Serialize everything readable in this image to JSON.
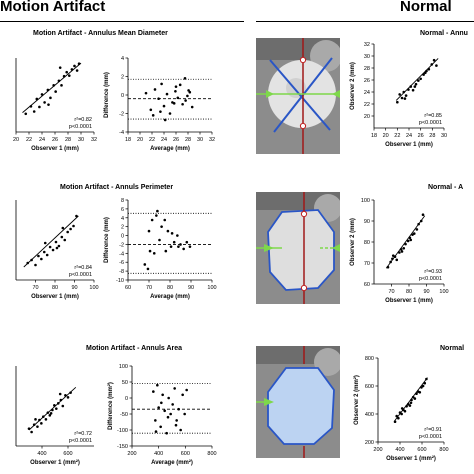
{
  "headers": {
    "left": "Motion Artifact",
    "right": "Normal"
  },
  "colors": {
    "ct_bg": "#8a8a8a",
    "ring": "#2a56c6",
    "fill": "#bcd3f2",
    "vline": "#a01818",
    "arrow": "#7ed84a"
  },
  "rows": [
    {
      "left_title": "Motion Artifact - Annulus Mean Diameter",
      "right_title": "Normal - Annu",
      "ct_icon": "ct-annulus-diameter-image",
      "stats_ma": {
        "r2": "r²=0.82",
        "p": "p<0.0001"
      },
      "stats_n": {
        "r2": "r²=0.85",
        "p": "p<0.0001"
      }
    },
    {
      "left_title": "Motion Artifact - Annuls Perimeter",
      "right_title": "Normal - A",
      "ct_icon": "ct-annulus-perimeter-image",
      "stats_ma": {
        "r2": "r²=0.84",
        "p": "p<0.0001"
      },
      "stats_n": {
        "r2": "r²=0.93",
        "p": "p<0.0001"
      }
    },
    {
      "left_title": "Motion Artifact - Annuls Area",
      "right_title": "Normal",
      "ct_icon": "ct-annulus-area-image",
      "stats_ma": {
        "r2": "r²=0.72",
        "p": "p<0.0001"
      },
      "stats_n": {
        "r2": "r²=0.91",
        "p": "p<0.0001"
      }
    }
  ],
  "chart_data": [
    {
      "id": "ma-diam-scatter",
      "type": "scatter",
      "xlabel": "Observer 1 (mm)",
      "ylabel": "",
      "xlim": [
        20,
        32
      ],
      "ylim": [
        18,
        31
      ],
      "xticks": [
        "20",
        "22",
        "24",
        "26",
        "28",
        "30",
        "32"
      ],
      "yticks": [],
      "x": [
        21.5,
        22.3,
        22.8,
        23.2,
        23.6,
        24.0,
        24.4,
        24.9,
        25.3,
        25.8,
        26.1,
        26.6,
        27.0,
        27.4,
        27.8,
        28.2,
        28.6,
        29.0,
        29.4,
        29.7,
        25.0,
        26.8
      ],
      "y": [
        21.2,
        22.5,
        21.6,
        23.8,
        22.4,
        24.6,
        23.2,
        25.4,
        24.0,
        26.2,
        25.1,
        27.0,
        26.2,
        27.8,
        28.5,
        27.9,
        29.0,
        29.6,
        28.8,
        30.0,
        22.8,
        29.3
      ],
      "fit": [
        [
          21.0,
          21.4
        ],
        [
          30.0,
          30.1
        ]
      ]
    },
    {
      "id": "ma-diam-ba",
      "type": "scatter",
      "xlabel": "Average (mm)",
      "ylabel": "Difference (mm)",
      "xlim": [
        18,
        32
      ],
      "ylim": [
        -4,
        4
      ],
      "xticks": [
        "18",
        "20",
        "22",
        "24",
        "26",
        "28",
        "30",
        "32"
      ],
      "yticks": [
        "-4",
        "-2",
        "0",
        "2",
        "4"
      ],
      "x": [
        21.0,
        21.8,
        22.5,
        23.1,
        23.6,
        24.0,
        24.5,
        25.0,
        25.4,
        25.9,
        26.3,
        26.7,
        27.1,
        27.5,
        27.9,
        28.3,
        28.7,
        24.2,
        26.0,
        27.6,
        22.2,
        25.7,
        28.1,
        23.4
      ],
      "y": [
        0.2,
        -1.6,
        0.6,
        -0.4,
        1.2,
        -1.2,
        0.1,
        -2.0,
        -0.8,
        0.4,
        -0.3,
        1.1,
        -1.0,
        1.8,
        -0.1,
        0.3,
        -1.3,
        -2.7,
        0.9,
        -0.6,
        -2.2,
        -0.9,
        0.5,
        -1.8
      ],
      "hlines": [
        {
          "y": 1.7,
          "style": "dotted"
        },
        {
          "y": -0.4,
          "style": "dashed"
        },
        {
          "y": -2.6,
          "style": "dotted"
        }
      ]
    },
    {
      "id": "n-diam-scatter",
      "type": "scatter",
      "xlabel": "Observer 1 (mm)",
      "ylabel": "Observer 2 (mm)",
      "xlim": [
        18,
        30
      ],
      "ylim": [
        18,
        32
      ],
      "xticks": [
        "18",
        "20",
        "22",
        "24",
        "26",
        "28",
        "30"
      ],
      "yticks": [
        "20",
        "22",
        "24",
        "26",
        "28",
        "30",
        "32"
      ],
      "x": [
        22.0,
        22.4,
        22.8,
        23.1,
        23.5,
        23.9,
        24.3,
        24.7,
        25.2,
        25.6,
        26.0,
        26.5,
        27.0,
        27.4,
        27.9,
        28.3,
        28.7,
        23.3,
        25.0,
        26.8
      ],
      "y": [
        22.3,
        23.6,
        23.0,
        24.0,
        23.4,
        24.4,
        24.9,
        24.3,
        25.3,
        25.9,
        26.2,
        26.9,
        27.5,
        27.8,
        28.6,
        29.3,
        28.4,
        22.9,
        24.9,
        27.2
      ],
      "fit": [
        [
          21.8,
          22.6
        ],
        [
          29.0,
          29.6
        ]
      ]
    },
    {
      "id": "ma-perim-scatter",
      "type": "scatter",
      "xlabel": "Observer 1 (mm)",
      "ylabel": "",
      "xlim": [
        60,
        100
      ],
      "ylim": [
        60,
        100
      ],
      "xticks": [
        "70",
        "80",
        "90",
        "100"
      ],
      "yticks": [],
      "x": [
        66.0,
        68.0,
        70.0,
        71.5,
        73.0,
        74.5,
        76.0,
        77.5,
        79.0,
        80.5,
        82.0,
        83.5,
        85.0,
        86.5,
        88.0,
        89.5,
        91.0,
        75.0,
        81.0,
        84.0
      ],
      "y": [
        68.5,
        70.0,
        67.5,
        72.0,
        70.5,
        74.0,
        72.5,
        76.5,
        75.0,
        79.0,
        77.0,
        81.5,
        80.0,
        84.0,
        85.5,
        87.0,
        92.0,
        78.5,
        76.0,
        86.0
      ],
      "fit": [
        [
          64.0,
          66.5
        ],
        [
          92.0,
          92.0
        ]
      ]
    },
    {
      "id": "ma-perim-ba",
      "type": "scatter",
      "xlabel": "Average (mm)",
      "ylabel": "Difference (mm)",
      "xlim": [
        60,
        100
      ],
      "ylim": [
        -10,
        8
      ],
      "xticks": [
        "60",
        "70",
        "80",
        "90",
        "100"
      ],
      "yticks": [
        "-10",
        "-8",
        "-6",
        "-4",
        "-2",
        "0",
        "2",
        "4",
        "6",
        "8"
      ],
      "x": [
        68.0,
        69.5,
        70.5,
        71.5,
        72.5,
        73.5,
        75.0,
        76.0,
        77.5,
        79.0,
        80.5,
        82.0,
        83.5,
        85.0,
        86.5,
        88.0,
        89.5,
        74.0,
        81.0,
        84.0,
        70.0,
        78.0
      ],
      "y": [
        -6.5,
        -7.5,
        -3.5,
        3.5,
        -4.0,
        4.5,
        -1.0,
        2.0,
        3.5,
        1.0,
        -2.5,
        -1.5,
        0.0,
        -2.0,
        -3.0,
        -1.5,
        -2.5,
        5.5,
        0.5,
        -2.5,
        1.0,
        -3.5
      ],
      "hlines": [
        {
          "y": 5.0,
          "style": "dotted"
        },
        {
          "y": -2.0,
          "style": "dashed"
        },
        {
          "y": -8.5,
          "style": "dotted"
        }
      ]
    },
    {
      "id": "n-perim-scatter",
      "type": "scatter",
      "xlabel": "Observer 1 (mm)",
      "ylabel": "Observer 2 (mm)",
      "xlim": [
        60,
        100
      ],
      "ylim": [
        60,
        100
      ],
      "xticks": [
        "70",
        "80",
        "90",
        "100"
      ],
      "yticks": [
        "60",
        "70",
        "80",
        "90",
        "100"
      ],
      "x": [
        68.0,
        69.5,
        70.5,
        72.0,
        73.0,
        74.5,
        75.5,
        77.0,
        78.0,
        79.5,
        80.5,
        82.0,
        83.0,
        84.5,
        85.5,
        87.0,
        88.0,
        71.0,
        76.0,
        81.0
      ],
      "y": [
        68.0,
        70.5,
        72.0,
        73.0,
        71.5,
        75.0,
        76.5,
        77.0,
        79.0,
        80.5,
        82.0,
        83.5,
        84.0,
        86.0,
        88.5,
        90.0,
        93.0,
        73.5,
        75.5,
        81.0
      ],
      "fit": [
        [
          67.0,
          67.5
        ],
        [
          89.0,
          92.5
        ]
      ]
    },
    {
      "id": "ma-area-scatter",
      "type": "scatter",
      "xlabel": "Observer 1 (mm²)",
      "ylabel": "",
      "xlim": [
        200,
        800
      ],
      "ylim": [
        200,
        800
      ],
      "xticks": [
        "400",
        "600"
      ],
      "yticks": [],
      "x": [
        300,
        320,
        340,
        365,
        380,
        395,
        410,
        430,
        445,
        460,
        480,
        495,
        510,
        525,
        545,
        560,
        580,
        600,
        620,
        350,
        470,
        540
      ],
      "y": [
        330,
        305,
        360,
        345,
        395,
        370,
        420,
        400,
        450,
        430,
        470,
        505,
        480,
        520,
        545,
        500,
        580,
        565,
        600,
        400,
        445,
        590
      ],
      "fit": [
        [
          300,
          320
        ],
        [
          660,
          640
        ]
      ]
    },
    {
      "id": "ma-area-ba",
      "type": "scatter",
      "xlabel": "Average (mm²)",
      "ylabel": "Difference (mm²)",
      "xlim": [
        200,
        800
      ],
      "ylim": [
        -150,
        100
      ],
      "xticks": [
        "200",
        "400",
        "600",
        "800"
      ],
      "yticks": [
        "-150",
        "-100",
        "-50",
        "0",
        "50",
        "100"
      ],
      "x": [
        360,
        375,
        390,
        400,
        415,
        430,
        445,
        460,
        475,
        490,
        505,
        520,
        535,
        550,
        565,
        580,
        595,
        610,
        420,
        470,
        530,
        380
      ],
      "y": [
        20,
        -70,
        40,
        -30,
        -90,
        10,
        -40,
        -110,
        0,
        -50,
        -20,
        30,
        -70,
        -35,
        -100,
        10,
        -50,
        25,
        -15,
        -60,
        -85,
        -105
      ],
      "hlines": [
        {
          "y": 45,
          "style": "dotted"
        },
        {
          "y": -35,
          "style": "dashed"
        },
        {
          "y": -110,
          "style": "dotted"
        }
      ]
    },
    {
      "id": "n-area-scatter",
      "type": "scatter",
      "xlabel": "Observer 1 (mm²)",
      "ylabel": "Observer 2 (mm²)",
      "xlim": [
        200,
        800
      ],
      "ylim": [
        200,
        800
      ],
      "xticks": [
        "200",
        "400",
        "600",
        "800"
      ],
      "yticks": [
        "200",
        "400",
        "600",
        "800"
      ],
      "x": [
        355,
        370,
        385,
        400,
        415,
        430,
        445,
        460,
        475,
        490,
        505,
        520,
        535,
        550,
        565,
        580,
        595,
        610,
        625,
        640,
        420,
        500
      ],
      "y": [
        345,
        385,
        370,
        410,
        400,
        430,
        420,
        455,
        470,
        460,
        500,
        520,
        510,
        545,
        560,
        555,
        590,
        600,
        620,
        650,
        440,
        480
      ],
      "fit": [
        [
          350,
          350
        ],
        [
          650,
          660
        ]
      ]
    }
  ]
}
